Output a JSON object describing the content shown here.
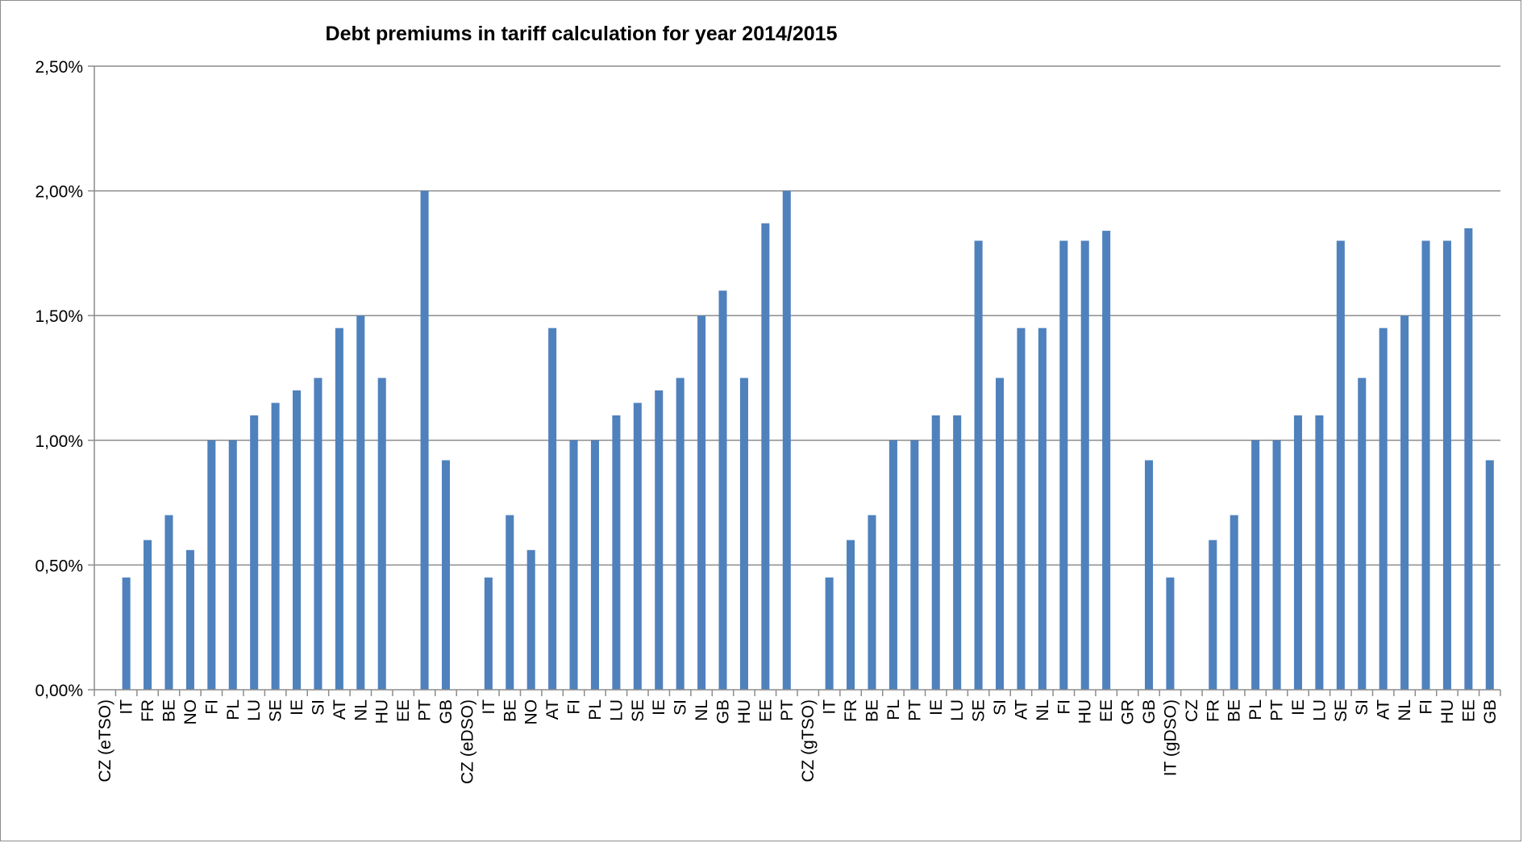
{
  "colors": {
    "bar": "#4f81bd",
    "grid": "#8c8c8c",
    "axis": "#8c8c8c",
    "text": "#000000"
  },
  "chart_data": {
    "type": "bar",
    "title": "Debt premiums in tariff calculation for year 2014/2015",
    "xlabel": "",
    "ylabel": "",
    "ylim": [
      0,
      0.025
    ],
    "y_ticks": [
      {
        "value": 0.0,
        "label": "0,00%"
      },
      {
        "value": 0.005,
        "label": "0,50%"
      },
      {
        "value": 0.01,
        "label": "1,00%"
      },
      {
        "value": 0.015,
        "label": "1,50%"
      },
      {
        "value": 0.02,
        "label": "2,00%"
      },
      {
        "value": 0.025,
        "label": "2,50%"
      }
    ],
    "grid": true,
    "legend": "none",
    "categories": [
      "CZ (eTSO)",
      "IT",
      "FR",
      "BE",
      "NO",
      "FI",
      "PL",
      "LU",
      "SE",
      "IE",
      "SI",
      "AT",
      "NL",
      "HU",
      "EE",
      "PT",
      "GB",
      "CZ (eDSO)",
      "IT",
      "BE",
      "NO",
      "AT",
      "FI",
      "PL",
      "LU",
      "SE",
      "IE",
      "SI",
      "NL",
      "GB",
      "HU",
      "EE",
      "PT",
      "CZ (gTSO)",
      "IT",
      "FR",
      "BE",
      "PL",
      "PT",
      "IE",
      "LU",
      "SE",
      "SI",
      "AT",
      "NL",
      "FI",
      "HU",
      "EE",
      "GR",
      "GB",
      "IT (gDSO)",
      "CZ",
      "FR",
      "BE",
      "PL",
      "PT",
      "IE",
      "LU",
      "SE",
      "SI",
      "AT",
      "NL",
      "FI",
      "HU",
      "EE",
      "GB"
    ],
    "values": [
      0.0,
      0.0045,
      0.006,
      0.007,
      0.0056,
      0.01,
      0.01,
      0.011,
      0.0115,
      0.012,
      0.0125,
      0.0145,
      0.015,
      0.0125,
      0.0,
      0.02,
      0.0092,
      0.0,
      0.0045,
      0.007,
      0.0056,
      0.0145,
      0.01,
      0.01,
      0.011,
      0.0115,
      0.012,
      0.0125,
      0.015,
      0.016,
      0.0125,
      0.0187,
      0.02,
      0.0,
      0.0045,
      0.006,
      0.007,
      0.01,
      0.01,
      0.011,
      0.011,
      0.018,
      0.0125,
      0.0145,
      0.0145,
      0.018,
      0.018,
      0.0184,
      0.0,
      0.0092,
      0.0045,
      0.0,
      0.006,
      0.007,
      0.01,
      0.01,
      0.011,
      0.011,
      0.018,
      0.0125,
      0.0145,
      0.015,
      0.018,
      0.018,
      0.0185,
      0.0092
    ]
  }
}
